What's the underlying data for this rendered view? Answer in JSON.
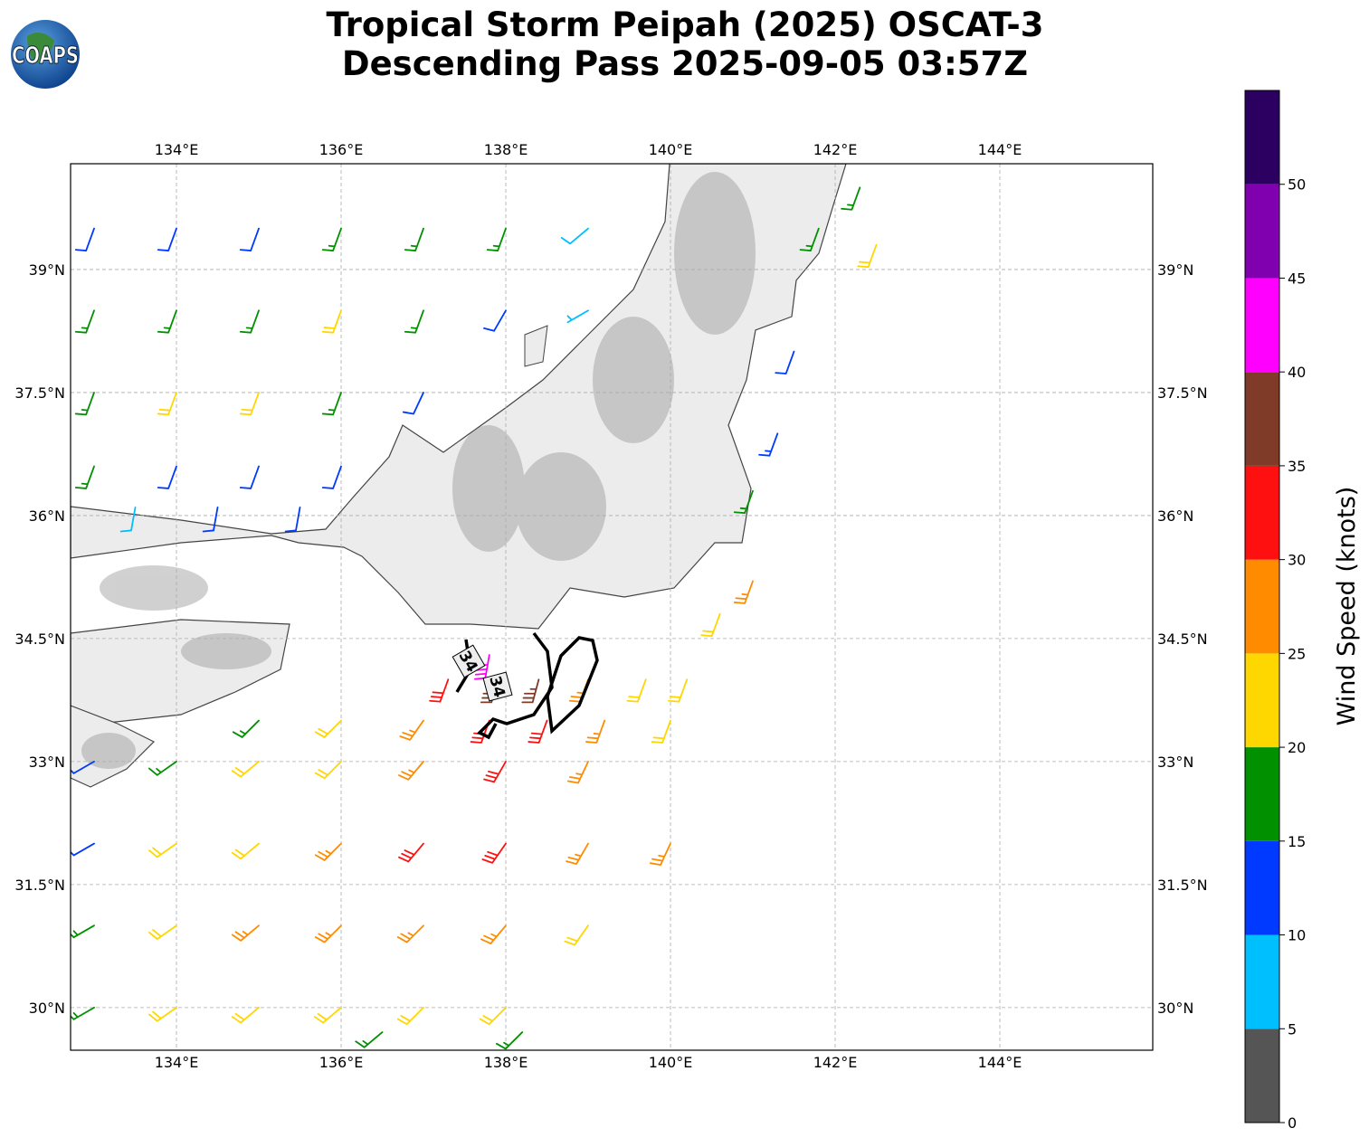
{
  "chart_data": {
    "type": "barb",
    "title": [
      "Tropical Storm Peipah (2025) OSCAT-3",
      "Descending Pass 2025-09-05 03:57Z"
    ],
    "logo": "COAPS",
    "xlim": [
      132.714,
      145.857
    ],
    "ylim": [
      29.48,
      40.29
    ],
    "xticks": [
      {
        "value": 134,
        "label": "134°E"
      },
      {
        "value": 136,
        "label": "136°E"
      },
      {
        "value": 138,
        "label": "138°E"
      },
      {
        "value": 140,
        "label": "140°E"
      },
      {
        "value": 142,
        "label": "142°E"
      },
      {
        "value": 144,
        "label": "144°E"
      }
    ],
    "yticks": [
      {
        "value": 30,
        "label": "30°N"
      },
      {
        "value": 31.5,
        "label": "31.5°N"
      },
      {
        "value": 33,
        "label": "33°N"
      },
      {
        "value": 34.5,
        "label": "34.5°N"
      },
      {
        "value": 36,
        "label": "36°N"
      },
      {
        "value": 37.5,
        "label": "37.5°N"
      },
      {
        "value": 39,
        "label": "39°N"
      }
    ],
    "grid": true,
    "contour_level": 34,
    "colorbar": {
      "label": "Wind Speed (knots)",
      "bounds": [
        0,
        5,
        10,
        15,
        20,
        25,
        30,
        35,
        40,
        45,
        50,
        55
      ],
      "colors": [
        "#555555",
        "#00bfff",
        "#0039ff",
        "#009000",
        "#ffd700",
        "#ff8c00",
        "#ff1010",
        "#803a28",
        "#ff00ff",
        "#8000b0",
        "#2b0060"
      ],
      "ticks": [
        0,
        5,
        10,
        15,
        20,
        25,
        30,
        35,
        40,
        45,
        50
      ]
    },
    "barbs": [
      [
        133,
        39.5,
        12,
        200
      ],
      [
        134,
        39.5,
        12,
        200
      ],
      [
        135,
        39.5,
        12,
        200
      ],
      [
        136,
        39.5,
        17,
        200
      ],
      [
        137,
        39.5,
        17,
        200
      ],
      [
        138,
        39.5,
        15,
        200
      ],
      [
        139,
        39.5,
        8,
        230
      ],
      [
        133,
        38.5,
        17,
        200
      ],
      [
        134,
        38.5,
        17,
        200
      ],
      [
        135,
        38.5,
        17,
        200
      ],
      [
        136,
        38.5,
        22,
        200
      ],
      [
        137,
        38.5,
        17,
        200
      ],
      [
        138,
        38.5,
        12,
        210
      ],
      [
        139,
        38.5,
        7,
        240
      ],
      [
        133,
        37.5,
        17,
        200
      ],
      [
        134,
        37.5,
        22,
        200
      ],
      [
        135,
        37.5,
        22,
        200
      ],
      [
        136,
        37.5,
        17,
        200
      ],
      [
        137,
        37.5,
        12,
        205
      ],
      [
        133,
        36.6,
        17,
        200
      ],
      [
        134,
        36.6,
        12,
        200
      ],
      [
        135,
        36.6,
        12,
        200
      ],
      [
        136,
        36.6,
        12,
        200
      ],
      [
        133.5,
        36.1,
        8,
        190
      ],
      [
        134.5,
        36.1,
        12,
        190
      ],
      [
        135.5,
        36.1,
        12,
        190
      ],
      [
        141.8,
        39.5,
        17,
        200
      ],
      [
        142.3,
        40,
        17,
        200
      ],
      [
        142.5,
        39.3,
        22,
        200
      ],
      [
        141.5,
        38,
        12,
        200
      ],
      [
        141.3,
        37,
        13,
        200
      ],
      [
        141,
        36.3,
        17,
        200
      ],
      [
        141,
        35.2,
        27,
        200
      ],
      [
        140.6,
        34.8,
        22,
        200
      ],
      [
        137.3,
        34,
        32,
        200
      ],
      [
        137.8,
        34.3,
        42,
        190
      ],
      [
        137.9,
        34,
        36,
        195
      ],
      [
        138.4,
        34,
        37,
        195
      ],
      [
        139,
        34,
        27,
        200
      ],
      [
        139.7,
        34,
        22,
        200
      ],
      [
        140.2,
        34,
        22,
        200
      ],
      [
        135,
        33.5,
        17,
        225
      ],
      [
        136,
        33.5,
        22,
        225
      ],
      [
        137,
        33.5,
        27,
        215
      ],
      [
        137.8,
        33.5,
        32,
        200
      ],
      [
        138.5,
        33.5,
        32,
        200
      ],
      [
        139.2,
        33.5,
        27,
        200
      ],
      [
        140,
        33.5,
        22,
        200
      ],
      [
        133,
        33,
        12,
        240
      ],
      [
        134,
        33,
        17,
        235
      ],
      [
        135,
        33,
        22,
        230
      ],
      [
        136,
        33,
        22,
        225
      ],
      [
        137,
        33,
        27,
        220
      ],
      [
        138,
        33,
        32,
        210
      ],
      [
        139,
        33,
        27,
        205
      ],
      [
        133,
        32,
        12,
        240
      ],
      [
        134,
        32,
        22,
        235
      ],
      [
        135,
        32,
        22,
        230
      ],
      [
        136,
        32,
        27,
        225
      ],
      [
        137,
        32,
        32,
        220
      ],
      [
        138,
        32,
        32,
        215
      ],
      [
        139,
        32,
        27,
        210
      ],
      [
        140,
        32,
        27,
        205
      ],
      [
        133,
        31,
        17,
        240
      ],
      [
        134,
        31,
        22,
        235
      ],
      [
        135,
        31,
        27,
        230
      ],
      [
        136,
        31,
        27,
        225
      ],
      [
        137,
        31,
        27,
        225
      ],
      [
        138,
        31,
        27,
        220
      ],
      [
        139,
        31,
        22,
        215
      ],
      [
        133,
        30,
        17,
        240
      ],
      [
        134,
        30,
        22,
        235
      ],
      [
        135,
        30,
        22,
        230
      ],
      [
        136,
        30,
        22,
        230
      ],
      [
        137,
        30,
        22,
        225
      ],
      [
        138,
        30,
        22,
        225
      ],
      [
        136.5,
        29.7,
        17,
        230
      ],
      [
        138.2,
        29.7,
        17,
        225
      ]
    ]
  }
}
